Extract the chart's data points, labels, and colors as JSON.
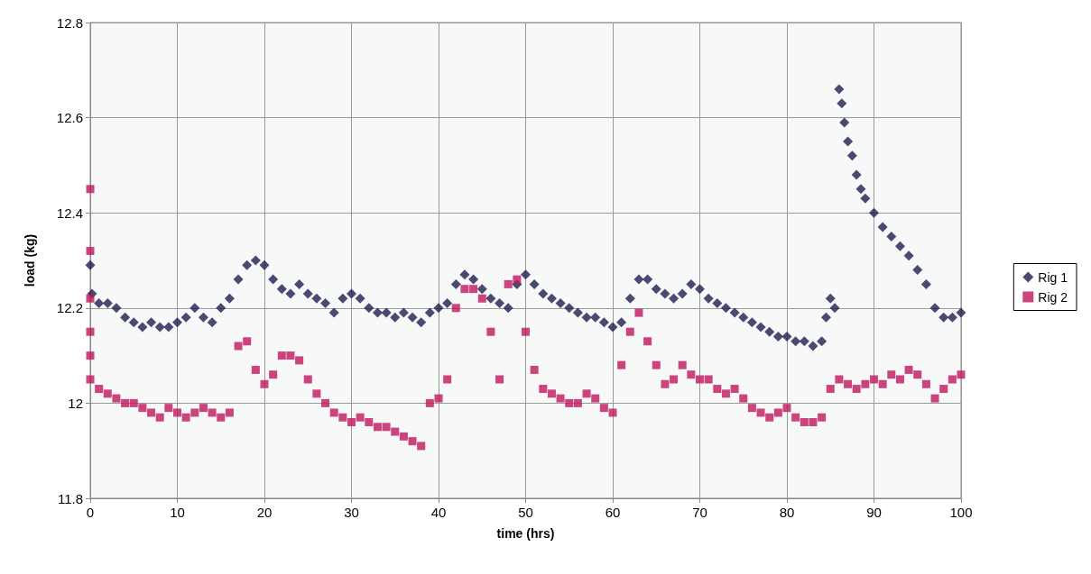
{
  "chart_data": {
    "type": "scatter",
    "xlabel": "time (hrs)",
    "ylabel": "load (kg)",
    "xlim": [
      0,
      100
    ],
    "xticks": [
      0,
      10,
      20,
      30,
      40,
      50,
      60,
      70,
      80,
      90,
      100
    ],
    "ylim": [
      11.8,
      12.8
    ],
    "yticks": [
      11.8,
      12,
      12.2,
      12.4,
      12.6,
      12.8
    ],
    "grid": true,
    "legend": "right",
    "series": [
      {
        "name": "Rig 1",
        "color": "#1f1b4f",
        "marker": "diamond",
        "x": [
          0,
          0.2,
          1,
          2,
          3,
          4,
          5,
          6,
          7,
          8,
          9,
          10,
          11,
          12,
          13,
          14,
          15,
          16,
          17,
          18,
          19,
          20,
          21,
          22,
          23,
          24,
          25,
          26,
          27,
          28,
          29,
          30,
          31,
          32,
          33,
          34,
          35,
          36,
          37,
          38,
          39,
          40,
          41,
          42,
          43,
          44,
          45,
          46,
          47,
          48,
          49,
          50,
          51,
          52,
          53,
          54,
          55,
          56,
          57,
          58,
          59,
          60,
          61,
          62,
          63,
          64,
          65,
          66,
          67,
          68,
          69,
          70,
          71,
          72,
          73,
          74,
          75,
          76,
          77,
          78,
          79,
          80,
          81,
          82,
          83,
          84,
          84.5,
          85,
          85.5,
          86,
          86.3,
          86.6,
          87,
          87.5,
          88,
          88.5,
          89,
          90,
          91,
          92,
          93,
          94,
          95,
          96,
          97,
          98,
          99,
          100
        ],
        "values": [
          12.29,
          12.23,
          12.21,
          12.21,
          12.2,
          12.18,
          12.17,
          12.16,
          12.17,
          12.16,
          12.16,
          12.17,
          12.18,
          12.2,
          12.18,
          12.17,
          12.2,
          12.22,
          12.26,
          12.29,
          12.3,
          12.29,
          12.26,
          12.24,
          12.23,
          12.25,
          12.23,
          12.22,
          12.21,
          12.19,
          12.22,
          12.23,
          12.22,
          12.2,
          12.19,
          12.19,
          12.18,
          12.19,
          12.18,
          12.17,
          12.19,
          12.2,
          12.21,
          12.25,
          12.27,
          12.26,
          12.24,
          12.22,
          12.21,
          12.2,
          12.25,
          12.27,
          12.25,
          12.23,
          12.22,
          12.21,
          12.2,
          12.19,
          12.18,
          12.18,
          12.17,
          12.16,
          12.17,
          12.22,
          12.26,
          12.26,
          12.24,
          12.23,
          12.22,
          12.23,
          12.25,
          12.24,
          12.22,
          12.21,
          12.2,
          12.19,
          12.18,
          12.17,
          12.16,
          12.15,
          12.14,
          12.14,
          12.13,
          12.13,
          12.12,
          12.13,
          12.18,
          12.22,
          12.2,
          12.66,
          12.63,
          12.59,
          12.55,
          12.52,
          12.48,
          12.45,
          12.43,
          12.4,
          12.37,
          12.35,
          12.33,
          12.31,
          12.28,
          12.25,
          12.2,
          12.18,
          12.18,
          12.19
        ]
      },
      {
        "name": "Rig 2",
        "color": "#c0175e",
        "marker": "square",
        "x": [
          0,
          0,
          0,
          0,
          0,
          0,
          1,
          2,
          3,
          4,
          5,
          6,
          7,
          8,
          9,
          10,
          11,
          12,
          13,
          14,
          15,
          16,
          17,
          18,
          19,
          20,
          21,
          22,
          23,
          24,
          25,
          26,
          27,
          28,
          29,
          30,
          31,
          32,
          33,
          34,
          35,
          36,
          37,
          38,
          39,
          40,
          41,
          42,
          43,
          44,
          45,
          46,
          47,
          48,
          49,
          50,
          51,
          52,
          53,
          54,
          55,
          56,
          57,
          58,
          59,
          60,
          61,
          62,
          63,
          64,
          65,
          66,
          67,
          68,
          69,
          70,
          71,
          72,
          73,
          74,
          75,
          76,
          77,
          78,
          79,
          80,
          81,
          82,
          83,
          84,
          85,
          86,
          87,
          88,
          89,
          90,
          91,
          92,
          93,
          94,
          95,
          96,
          97,
          98,
          99,
          100
        ],
        "values": [
          12.45,
          12.32,
          12.22,
          12.15,
          12.1,
          12.05,
          12.03,
          12.02,
          12.01,
          12,
          12,
          11.99,
          11.98,
          11.97,
          11.99,
          11.98,
          11.97,
          11.98,
          11.99,
          11.98,
          11.97,
          11.98,
          12.12,
          12.13,
          12.07,
          12.04,
          12.06,
          12.1,
          12.1,
          12.09,
          12.05,
          12.02,
          12,
          11.98,
          11.97,
          11.96,
          11.97,
          11.96,
          11.95,
          11.95,
          11.94,
          11.93,
          11.92,
          11.91,
          12,
          12.01,
          12.05,
          12.2,
          12.24,
          12.24,
          12.22,
          12.15,
          12.05,
          12.25,
          12.26,
          12.15,
          12.07,
          12.03,
          12.02,
          12.01,
          12,
          12,
          12.02,
          12.01,
          11.99,
          11.98,
          12.08,
          12.15,
          12.19,
          12.13,
          12.08,
          12.04,
          12.05,
          12.08,
          12.06,
          12.05,
          12.05,
          12.03,
          12.02,
          12.03,
          12.01,
          11.99,
          11.98,
          11.97,
          11.98,
          11.99,
          11.97,
          11.96,
          11.96,
          11.97,
          12.03,
          12.05,
          12.04,
          12.03,
          12.04,
          12.05,
          12.04,
          12.06,
          12.05,
          12.07,
          12.06,
          12.04,
          12.01,
          12.03,
          12.05,
          12.06
        ]
      }
    ]
  }
}
